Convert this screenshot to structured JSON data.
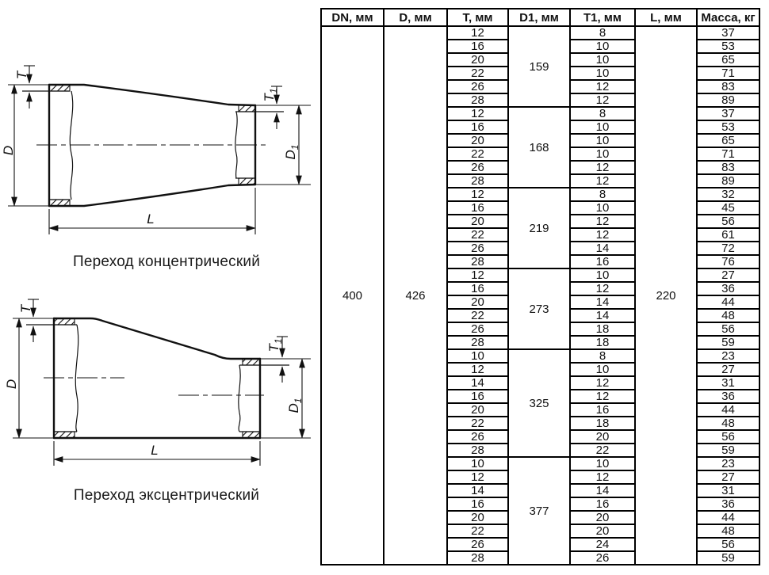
{
  "diagrams": [
    {
      "caption": "Переход концентрический"
    },
    {
      "caption": "Переход эксцентрический"
    }
  ],
  "dim_labels": {
    "t": "T",
    "d": "D",
    "l": "L",
    "t1_base": "T",
    "t1_sub": "1",
    "d1_base": "D",
    "d1_sub": "1"
  },
  "table": {
    "headers": [
      "DN, мм",
      "D, мм",
      "T, мм",
      "D1, мм",
      "T1, мм",
      "L, мм",
      "Масса, кг"
    ],
    "dn": "400",
    "d": "426",
    "l": "220",
    "groups": [
      {
        "d1": "159",
        "rows": [
          [
            "12",
            "8",
            "37"
          ],
          [
            "16",
            "10",
            "53"
          ],
          [
            "20",
            "10",
            "65"
          ],
          [
            "22",
            "10",
            "71"
          ],
          [
            "26",
            "12",
            "83"
          ],
          [
            "28",
            "12",
            "89"
          ]
        ]
      },
      {
        "d1": "168",
        "rows": [
          [
            "12",
            "8",
            "37"
          ],
          [
            "16",
            "10",
            "53"
          ],
          [
            "20",
            "10",
            "65"
          ],
          [
            "22",
            "10",
            "71"
          ],
          [
            "26",
            "12",
            "83"
          ],
          [
            "28",
            "12",
            "89"
          ]
        ]
      },
      {
        "d1": "219",
        "rows": [
          [
            "12",
            "8",
            "32"
          ],
          [
            "16",
            "10",
            "45"
          ],
          [
            "20",
            "12",
            "56"
          ],
          [
            "22",
            "12",
            "61"
          ],
          [
            "26",
            "14",
            "72"
          ],
          [
            "28",
            "16",
            "76"
          ]
        ]
      },
      {
        "d1": "273",
        "rows": [
          [
            "12",
            "10",
            "27"
          ],
          [
            "16",
            "12",
            "36"
          ],
          [
            "20",
            "14",
            "44"
          ],
          [
            "22",
            "14",
            "48"
          ],
          [
            "26",
            "18",
            "56"
          ],
          [
            "28",
            "18",
            "59"
          ]
        ]
      },
      {
        "d1": "325",
        "rows": [
          [
            "10",
            "8",
            "23"
          ],
          [
            "12",
            "10",
            "27"
          ],
          [
            "14",
            "12",
            "31"
          ],
          [
            "16",
            "12",
            "36"
          ],
          [
            "20",
            "16",
            "44"
          ],
          [
            "22",
            "18",
            "48"
          ],
          [
            "26",
            "20",
            "56"
          ],
          [
            "28",
            "22",
            "59"
          ]
        ]
      },
      {
        "d1": "377",
        "rows": [
          [
            "10",
            "10",
            "23"
          ],
          [
            "12",
            "12",
            "27"
          ],
          [
            "14",
            "14",
            "31"
          ],
          [
            "16",
            "16",
            "36"
          ],
          [
            "20",
            "20",
            "44"
          ],
          [
            "22",
            "20",
            "48"
          ],
          [
            "26",
            "24",
            "56"
          ],
          [
            "28",
            "26",
            "59"
          ]
        ]
      }
    ]
  }
}
